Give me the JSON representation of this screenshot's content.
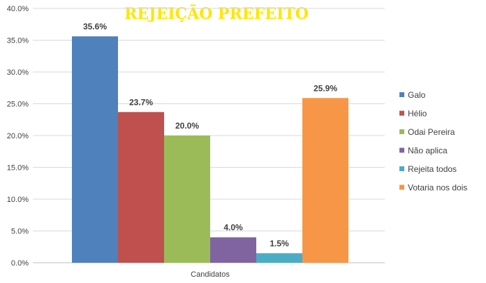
{
  "chart_data": {
    "type": "bar",
    "title": "REJEIÇÃO PREFEITO",
    "xlabel": "Candidatos",
    "ylabel": "",
    "ylim": [
      0,
      40
    ],
    "yticks": [
      "0.0%",
      "5.0%",
      "10.0%",
      "15.0%",
      "20.0%",
      "25.0%",
      "30.0%",
      "35.0%",
      "40.0%"
    ],
    "grid": true,
    "legend_position": "right",
    "series": [
      {
        "name": "Galo",
        "value": 35.6,
        "label": "35.6%",
        "color": "#4F81BD"
      },
      {
        "name": "Hélio",
        "value": 23.7,
        "label": "23.7%",
        "color": "#C0504D"
      },
      {
        "name": "Odai Pereira",
        "value": 20.0,
        "label": "20.0%",
        "color": "#9BBB59"
      },
      {
        "name": "Não aplica",
        "value": 4.0,
        "label": "4.0%",
        "color": "#8064A2"
      },
      {
        "name": "Rejeita todos",
        "value": 1.5,
        "label": "1.5%",
        "color": "#4BACC6"
      },
      {
        "name": "Votaria nos dois",
        "value": 25.9,
        "label": "25.9%",
        "color": "#F79646"
      }
    ]
  }
}
